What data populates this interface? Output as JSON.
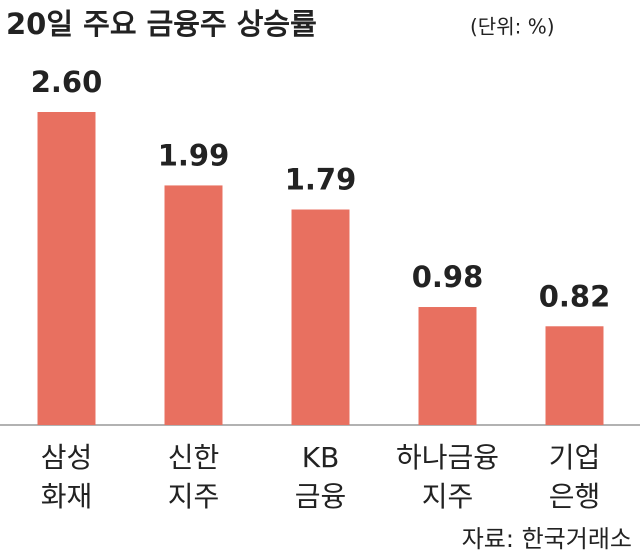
{
  "chart_data": {
    "type": "bar",
    "title": "20일 주요 금융주 상승률",
    "unit": "(단위: %)",
    "categories": [
      "삼성\n화재",
      "신한\n지주",
      "KB\n금융",
      "하나금융\n지주",
      "기업\n은행"
    ],
    "values": [
      2.6,
      1.99,
      1.79,
      0.98,
      0.82
    ],
    "value_labels": [
      "2.60",
      "1.99",
      "1.79",
      "0.98",
      "0.82"
    ],
    "color": "#e87060",
    "source": "자료: 한국거래소"
  }
}
